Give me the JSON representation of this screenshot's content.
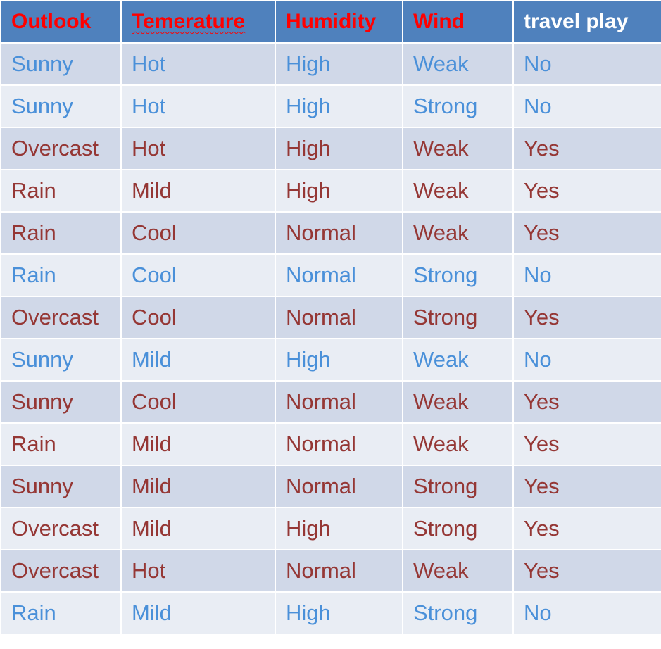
{
  "table": {
    "headers": [
      "Outlook",
      "Temerature",
      "Humidity",
      "Wind",
      "travel play"
    ],
    "rows": [
      [
        "Sunny",
        "Hot",
        "High",
        "Weak",
        "No"
      ],
      [
        "Sunny",
        "Hot",
        "High",
        "Strong",
        "No"
      ],
      [
        "Overcast",
        "Hot",
        "High",
        "Weak",
        "Yes"
      ],
      [
        "Rain",
        "Mild",
        "High",
        "Weak",
        "Yes"
      ],
      [
        "Rain",
        "Cool",
        "Normal",
        "Weak",
        "Yes"
      ],
      [
        "Rain",
        "Cool",
        "Normal",
        "Strong",
        "No"
      ],
      [
        "Overcast",
        "Cool",
        "Normal",
        "Strong",
        "Yes"
      ],
      [
        "Sunny",
        "Mild",
        "High",
        "Weak",
        "No"
      ],
      [
        "Sunny",
        "Cool",
        "Normal",
        "Weak",
        "Yes"
      ],
      [
        "Rain",
        "Mild",
        "Normal",
        "Weak",
        "Yes"
      ],
      [
        "Sunny",
        "Mild",
        "Normal",
        "Strong",
        "Yes"
      ],
      [
        "Overcast",
        "Mild",
        "High",
        "Strong",
        "Yes"
      ],
      [
        "Overcast",
        "Hot",
        "Normal",
        "Weak",
        "Yes"
      ],
      [
        "Rain",
        "Mild",
        "High",
        "Strong",
        "No"
      ]
    ]
  },
  "colors": {
    "header_bg": "#4f81bd",
    "header_text": "#ff0000",
    "header_last_text": "#ffffff",
    "row_odd_bg": "#d0d8e8",
    "row_even_bg": "#e9edf4",
    "no_text": "#4a90d9",
    "yes_text": "#953735"
  }
}
